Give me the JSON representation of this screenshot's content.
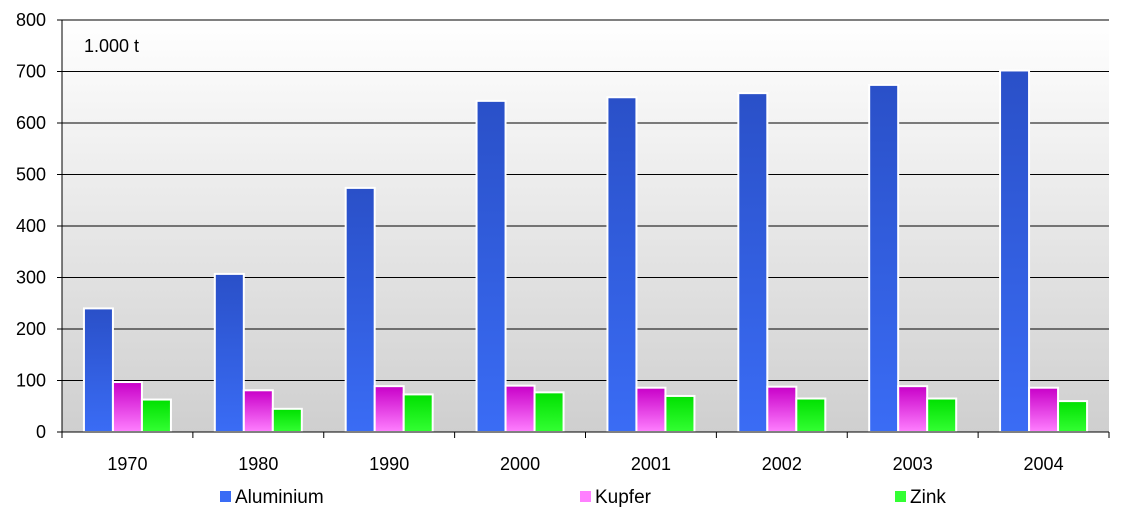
{
  "chart_data": {
    "type": "bar",
    "unit_label": "1.000 t",
    "categories": [
      "1970",
      "1980",
      "1990",
      "2000",
      "2001",
      "2002",
      "2003",
      "2004"
    ],
    "series": [
      {
        "name": "Aluminium",
        "values": [
          240,
          307,
          474,
          643,
          650,
          658,
          674,
          702
        ]
      },
      {
        "name": "Kupfer",
        "values": [
          97,
          81,
          89,
          90,
          86,
          88,
          89,
          86
        ]
      },
      {
        "name": "Zink",
        "values": [
          63,
          45,
          73,
          77,
          70,
          65,
          65,
          60
        ]
      }
    ],
    "ylim": [
      0,
      800
    ],
    "yticks": [
      0,
      100,
      200,
      300,
      400,
      500,
      600,
      700,
      800
    ],
    "grid": true,
    "legend_position": "bottom",
    "colors": {
      "Aluminium": [
        "#2a50c8",
        "#3a6cf5"
      ],
      "Kupfer": [
        "#c800c8",
        "#ff80ff"
      ],
      "Zink": [
        "#00e000",
        "#33ff33"
      ]
    }
  }
}
